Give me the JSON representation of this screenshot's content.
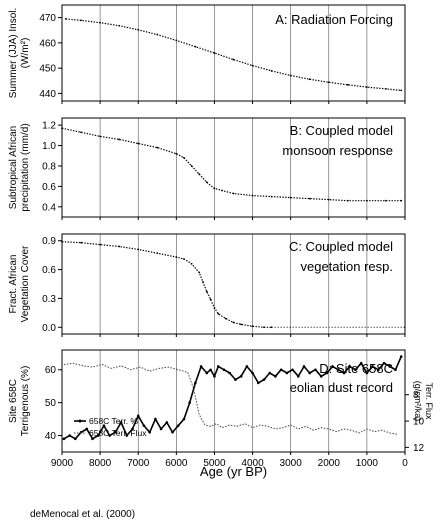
{
  "chart_data": [
    {
      "type": "scatter",
      "panel_title": [
        "A: Radiation Forcing"
      ],
      "ylabel": [
        "Summer (JJA) Insol.",
        "(W/m²)"
      ],
      "ylim": [
        437,
        475
      ],
      "xlim": [
        9000,
        0
      ],
      "yticks": [
        {
          "value": 440,
          "label": "440"
        },
        {
          "value": 450,
          "label": "450"
        },
        {
          "value": 460,
          "label": "460"
        },
        {
          "value": 470,
          "label": "470"
        }
      ],
      "series": [
        {
          "style": "dots",
          "x": [
            8900,
            8500,
            8000,
            7500,
            7000,
            6500,
            6000,
            5500,
            5000,
            4500,
            4000,
            3500,
            3000,
            2500,
            2000,
            1500,
            1000,
            500,
            100
          ],
          "y": [
            469.5,
            468.9,
            468.0,
            466.8,
            465.2,
            463.3,
            461.0,
            458.5,
            456.0,
            453.4,
            451.0,
            448.9,
            447.1,
            445.6,
            444.4,
            443.4,
            442.5,
            441.8,
            441.2
          ]
        }
      ]
    },
    {
      "type": "scatter",
      "panel_title": [
        "B: Coupled model",
        "monsoon response"
      ],
      "ylabel": [
        "Subtropical African",
        "precipitation (mm/d)"
      ],
      "ylim": [
        0.3,
        1.27
      ],
      "xlim": [
        9000,
        0
      ],
      "yticks": [
        {
          "value": 0.4,
          "label": "0.4"
        },
        {
          "value": 0.6,
          "label": "0.6"
        },
        {
          "value": 0.8,
          "label": "0.8"
        },
        {
          "value": 1.0,
          "label": "1.0"
        },
        {
          "value": 1.2,
          "label": "1.2"
        }
      ],
      "series": [
        {
          "style": "dots",
          "x": [
            9000,
            8500,
            8000,
            7500,
            7000,
            6500,
            6000,
            5800,
            5600,
            5400,
            5200,
            5000,
            4800,
            4500,
            4000,
            3500,
            3000,
            2500,
            2000,
            1500,
            1000,
            500,
            100
          ],
          "y": [
            1.17,
            1.13,
            1.09,
            1.06,
            1.02,
            0.98,
            0.92,
            0.88,
            0.8,
            0.72,
            0.64,
            0.58,
            0.56,
            0.53,
            0.51,
            0.5,
            0.49,
            0.48,
            0.47,
            0.46,
            0.46,
            0.46,
            0.46
          ]
        }
      ]
    },
    {
      "type": "scatter",
      "panel_title": [
        "C: Coupled model",
        "vegetation resp."
      ],
      "ylabel": [
        "Fract. African",
        "Vegetation Cover"
      ],
      "ylim": [
        -0.07,
        0.97
      ],
      "xlim": [
        9000,
        0
      ],
      "yticks": [
        {
          "value": 0.0,
          "label": "0.0"
        },
        {
          "value": 0.3,
          "label": "0.3"
        },
        {
          "value": 0.6,
          "label": "0.6"
        },
        {
          "value": 0.9,
          "label": "0.9"
        }
      ],
      "series": [
        {
          "style": "dots",
          "x": [
            9000,
            8500,
            8000,
            7500,
            7000,
            6500,
            6000,
            5800,
            5600,
            5400,
            5300,
            5200,
            5100,
            5000,
            4900,
            4700,
            4500,
            4300,
            4000,
            3700,
            3500
          ],
          "y": [
            0.89,
            0.88,
            0.86,
            0.84,
            0.81,
            0.77,
            0.73,
            0.71,
            0.66,
            0.57,
            0.47,
            0.37,
            0.29,
            0.2,
            0.14,
            0.09,
            0.05,
            0.03,
            0.01,
            0.0,
            0.0
          ]
        },
        {
          "style": "flat",
          "x": [
            3500,
            0
          ],
          "y": [
            0.0,
            0.0
          ]
        }
      ]
    },
    {
      "type": "line",
      "panel_title": [
        "D: Site 658C",
        "eolian dust record"
      ],
      "ylabel": [
        "Site 658C",
        "Terrigenous (%)"
      ],
      "ylabel_right": [
        "Terr. Flux",
        "(g/cm²/ka)"
      ],
      "ylim": [
        35,
        66
      ],
      "ylim_right": [
        4.6,
        12.35
      ],
      "xlim": [
        9000,
        0
      ],
      "yticks": [
        {
          "value": 40,
          "label": "40"
        },
        {
          "value": 50,
          "label": "50"
        },
        {
          "value": 60,
          "label": "60"
        }
      ],
      "yticks_right": [
        {
          "value": 8,
          "label": "8"
        },
        {
          "value": 10,
          "label": "10"
        },
        {
          "value": 12,
          "label": "12"
        }
      ],
      "legend": [
        "658C Terr. %",
        "658C Terr. Flux"
      ],
      "legend_position": "lower-left",
      "series": [
        {
          "name": "658C Terr. %",
          "axis": "left",
          "style": "line-dots",
          "x": [
            8950,
            8800,
            8650,
            8500,
            8350,
            8200,
            8050,
            7900,
            7750,
            7600,
            7450,
            7300,
            7150,
            7000,
            6850,
            6700,
            6550,
            6400,
            6250,
            6100,
            5950,
            5800,
            5650,
            5500,
            5350,
            5200,
            5100,
            5000,
            4900,
            4750,
            4600,
            4450,
            4300,
            4150,
            4000,
            3850,
            3700,
            3550,
            3400,
            3250,
            3100,
            2950,
            2800,
            2650,
            2500,
            2350,
            2200,
            2050,
            1900,
            1750,
            1600,
            1450,
            1300,
            1150,
            1000,
            850,
            700,
            550,
            400,
            250,
            100
          ],
          "y": [
            39,
            40,
            39,
            41,
            42,
            39,
            40,
            43,
            40,
            41,
            44,
            40,
            42,
            46,
            43,
            41,
            45,
            42,
            44,
            41,
            43,
            45,
            50,
            56,
            61,
            59,
            60,
            58,
            61,
            60,
            59,
            57,
            58,
            61,
            59,
            56,
            57,
            59,
            58,
            60,
            59,
            60,
            58,
            61,
            59,
            60,
            58,
            59,
            61,
            60,
            59,
            61,
            60,
            62,
            59,
            61,
            60,
            62,
            61,
            60,
            64
          ]
        },
        {
          "name": "658C Terr. Flux",
          "axis": "right",
          "style": "dotted-line",
          "x": [
            8950,
            8700,
            8450,
            8200,
            7950,
            7700,
            7450,
            7200,
            6950,
            6700,
            6450,
            6200,
            5950,
            5700,
            5550,
            5400,
            5250,
            5100,
            4950,
            4800,
            4600,
            4400,
            4200,
            4000,
            3800,
            3600,
            3400,
            3200,
            3000,
            2800,
            2600,
            2400,
            2200,
            2000,
            1800,
            1600,
            1400,
            1200,
            1000,
            800,
            600,
            400,
            200
          ],
          "y": [
            5.7,
            5.6,
            5.8,
            5.9,
            5.7,
            6.0,
            5.8,
            6.1,
            5.9,
            6.2,
            6.0,
            5.9,
            6.1,
            6.3,
            7.5,
            9.5,
            10.3,
            10.4,
            10.2,
            10.5,
            10.3,
            10.4,
            10.2,
            10.5,
            10.3,
            10.4,
            10.6,
            10.5,
            10.3,
            10.6,
            10.4,
            10.7,
            10.5,
            10.6,
            10.8,
            10.6,
            10.7,
            10.9,
            10.6,
            10.8,
            10.7,
            10.9,
            11.0
          ]
        }
      ]
    }
  ],
  "xaxis": {
    "label": "Age (yr BP)",
    "ticks": [
      {
        "value": 9000,
        "label": "9000"
      },
      {
        "value": 8000,
        "label": "8000"
      },
      {
        "value": 7000,
        "label": "7000"
      },
      {
        "value": 6000,
        "label": "6000"
      },
      {
        "value": 5000,
        "label": "5000"
      },
      {
        "value": 4000,
        "label": "4000"
      },
      {
        "value": 3000,
        "label": "3000"
      },
      {
        "value": 2000,
        "label": "2000"
      },
      {
        "value": 1000,
        "label": "1000"
      },
      {
        "value": 0,
        "label": "0"
      }
    ],
    "gridlines": [
      8000,
      7000,
      6000,
      5000,
      4000,
      3000,
      2000,
      1000
    ]
  },
  "citation": "deMenocal et al. (2000)"
}
